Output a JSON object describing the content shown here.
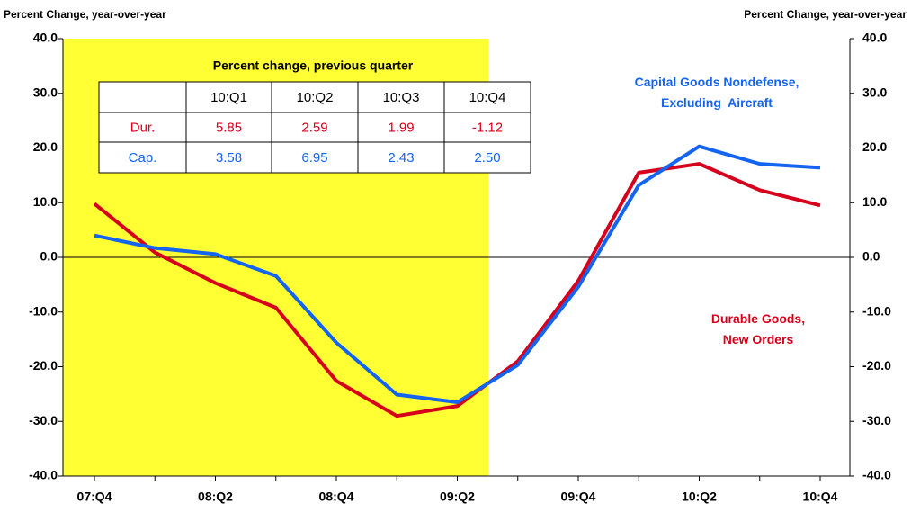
{
  "chart_data": {
    "type": "line",
    "ylabel": "Percent Change, year-over-year",
    "y2label": "Percent Change, year-over-year",
    "categories": [
      "07:Q4",
      null,
      "08:Q2",
      null,
      "08:Q4",
      null,
      "09:Q2",
      null,
      "09:Q4",
      null,
      "10:Q2",
      null,
      "10:Q4"
    ],
    "series": [
      {
        "name": "Durable Goods, New Orders",
        "color": "#d7001c",
        "values": [
          9.8,
          0.9,
          -4.7,
          -9.2,
          -22.6,
          -29.0,
          -27.2,
          -19.0,
          -4.3,
          15.5,
          17.1,
          12.3,
          9.5
        ]
      },
      {
        "name": "Capital Goods Nondefense, Excluding  Aircraft",
        "color": "#1464f0",
        "values": [
          4.0,
          1.7,
          0.6,
          -3.4,
          -15.6,
          -25.1,
          -26.5,
          -19.7,
          -5.4,
          13.2,
          20.3,
          17.1,
          16.4
        ]
      }
    ],
    "ylim": [
      -40,
      40
    ],
    "yticks": [
      {
        "value": -40,
        "label": "-40.0"
      },
      {
        "value": -30,
        "label": "-30.0"
      },
      {
        "value": -20,
        "label": "-20.0"
      },
      {
        "value": -10,
        "label": "-10.0"
      },
      {
        "value": 0,
        "label": "0.0"
      },
      {
        "value": 10,
        "label": "10.0"
      },
      {
        "value": 20,
        "label": "20.0"
      },
      {
        "value": 30,
        "label": "30.0"
      },
      {
        "value": 40,
        "label": "40.0"
      }
    ],
    "y2lim": [
      -40,
      40
    ],
    "y2ticks": [
      {
        "value": -40,
        "label": "-40.0"
      },
      {
        "value": -30,
        "label": "-30.0"
      },
      {
        "value": -20,
        "label": "-20.0"
      },
      {
        "value": -10,
        "label": "-10.0"
      },
      {
        "value": 0,
        "label": "0.0"
      },
      {
        "value": 10,
        "label": "10.0"
      },
      {
        "value": 20,
        "label": "20.0"
      },
      {
        "value": 30,
        "label": "30.0"
      },
      {
        "value": 40,
        "label": "40.0"
      }
    ],
    "grid": false,
    "table": {
      "title": "Percent change, previous quarter",
      "columns": [
        "10:Q1",
        "10:Q2",
        "10:Q3",
        "10:Q4"
      ],
      "rows": [
        {
          "label": "Dur.",
          "cells": [
            "5.85",
            "2.59",
            "1.99",
            "-1.12"
          ]
        },
        {
          "label": "Cap.",
          "cells": [
            "3.58",
            "6.95",
            "2.43",
            "2.50"
          ]
        }
      ]
    }
  }
}
